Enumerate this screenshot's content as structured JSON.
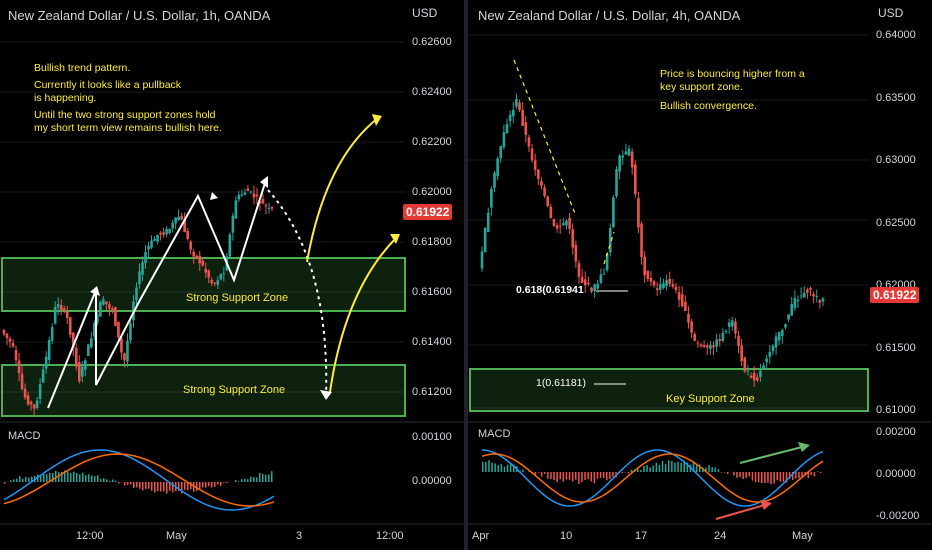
{
  "left": {
    "title": "New Zealand Dollar / U.S. Dollar, 1h, OANDA",
    "currency": "USD",
    "current_price": "0.61922",
    "notes": [
      "Bullish trend pattern.",
      "Currently it looks like a pullback",
      "is happening.",
      "Until the two strong support zones hold",
      "my short term view remains bullish here."
    ],
    "zone_upper_label": "Strong Support Zone",
    "zone_lower_label": "Strong Support Zone",
    "macd_label": "MACD",
    "price_ticks": [
      "0.62600",
      "0.62400",
      "0.62200",
      "0.62000",
      "0.61800",
      "0.61600",
      "0.61400",
      "0.61200"
    ],
    "macd_ticks": [
      "0.00100",
      "0.00000"
    ],
    "time_ticks": [
      "12:00",
      "May",
      "3",
      "12:00"
    ],
    "colors": {
      "up": "#26a69a",
      "down": "#ef5350",
      "zone": "#4caf50",
      "annotation": "#ffeb3b",
      "macd": "#2196f3",
      "signal": "#ff6d00"
    }
  },
  "right": {
    "title": "New Zealand Dollar / U.S. Dollar, 4h, OANDA",
    "currency": "USD",
    "current_price": "0.61922",
    "notes": [
      "Price is bouncing higher from a",
      "key support zone.",
      "Bullish convergence."
    ],
    "fib_618": "0.618(0.61941",
    "fib_1": "1(0.61181)",
    "zone_label": "Key Support Zone",
    "macd_label": "MACD",
    "price_ticks": [
      "0.64000",
      "0.63500",
      "0.63000",
      "0.62500",
      "0.62000",
      "0.61500",
      "0.61000"
    ],
    "macd_ticks": [
      "0.00200",
      "0.00000",
      "-0.00200"
    ],
    "time_ticks": [
      "Apr",
      "10",
      "17",
      "24",
      "May"
    ]
  }
}
